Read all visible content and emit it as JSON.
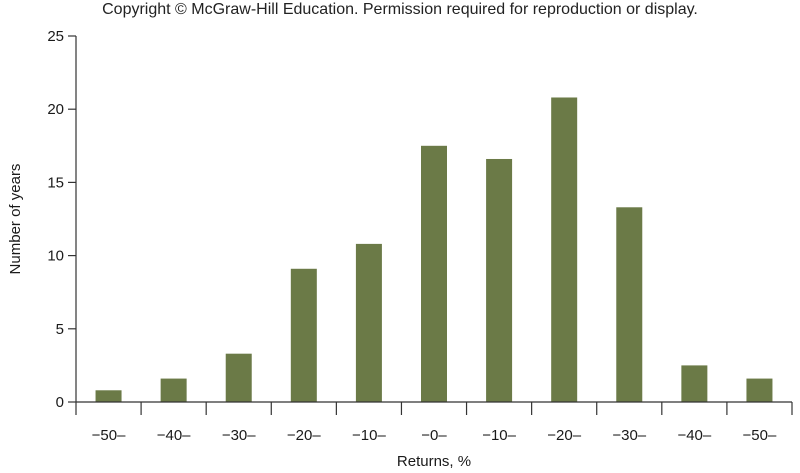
{
  "copyright": "Copyright © McGraw-Hill Education. Permission required for reproduction or display.",
  "chart_data": {
    "type": "bar",
    "title": "",
    "xlabel": "Returns, %",
    "ylabel": "Number of years",
    "categories": [
      "−50–",
      "−40–",
      "−30–",
      "−20–",
      "−10–",
      "−0–",
      "−10–",
      "−20–",
      "−30–",
      "−40–",
      "−50–"
    ],
    "values": [
      0.8,
      1.6,
      3.3,
      9.1,
      10.8,
      17.5,
      16.6,
      20.8,
      13.3,
      2.5,
      1.6
    ],
    "ylim": [
      0,
      25
    ],
    "yticks": [
      0,
      5,
      10,
      15,
      20,
      25
    ],
    "grid": false,
    "bar_color": "#6b7a47",
    "axis_color": "#333333"
  }
}
